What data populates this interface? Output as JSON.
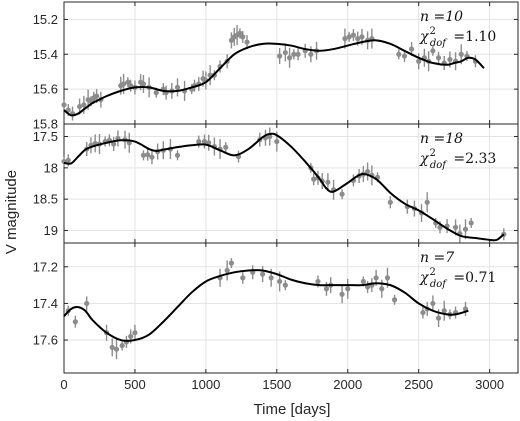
{
  "chart_data": {
    "type": "scatter",
    "xlabel": "Time [days]",
    "ylabel": "V magnitude",
    "xlim": [
      0,
      3200
    ],
    "x_ticks": [
      "0",
      "500",
      "1000",
      "1500",
      "2000",
      "2500",
      "3000"
    ],
    "grid": true,
    "panels": [
      {
        "ylim": [
          15.8,
          15.1
        ],
        "y_reversed": true,
        "y_ticks": [
          "15.2",
          "15.4",
          "15.6",
          "15.8"
        ],
        "y_tick_values": [
          15.2,
          15.4,
          15.6,
          15.8
        ],
        "annotation": {
          "n_label": "n =10",
          "chi_value": "=1.10"
        },
        "points": [
          [
            0,
            15.69
          ],
          [
            30,
            15.72
          ],
          [
            60,
            15.74
          ],
          [
            110,
            15.7
          ],
          [
            140,
            15.69
          ],
          [
            170,
            15.66
          ],
          [
            190,
            15.67
          ],
          [
            210,
            15.65
          ],
          [
            230,
            15.64
          ],
          [
            260,
            15.66
          ],
          [
            400,
            15.58
          ],
          [
            420,
            15.57
          ],
          [
            450,
            15.56
          ],
          [
            470,
            15.58
          ],
          [
            500,
            15.59
          ],
          [
            540,
            15.56
          ],
          [
            560,
            15.57
          ],
          [
            600,
            15.59
          ],
          [
            650,
            15.62
          ],
          [
            700,
            15.6
          ],
          [
            720,
            15.62
          ],
          [
            760,
            15.61
          ],
          [
            800,
            15.59
          ],
          [
            850,
            15.61
          ],
          [
            900,
            15.6
          ],
          [
            920,
            15.58
          ],
          [
            950,
            15.57
          ],
          [
            980,
            15.54
          ],
          [
            1000,
            15.55
          ],
          [
            1030,
            15.52
          ],
          [
            1060,
            15.52
          ],
          [
            1100,
            15.47
          ],
          [
            1150,
            15.44
          ],
          [
            1180,
            15.32
          ],
          [
            1200,
            15.3
          ],
          [
            1220,
            15.29
          ],
          [
            1240,
            15.28
          ],
          [
            1260,
            15.3
          ],
          [
            1290,
            15.33
          ],
          [
            1520,
            15.41
          ],
          [
            1560,
            15.39
          ],
          [
            1590,
            15.42
          ],
          [
            1620,
            15.4
          ],
          [
            1650,
            15.4
          ],
          [
            1700,
            15.38
          ],
          [
            1740,
            15.4
          ],
          [
            1780,
            15.38
          ],
          [
            1980,
            15.31
          ],
          [
            2010,
            15.3
          ],
          [
            2040,
            15.29
          ],
          [
            2070,
            15.31
          ],
          [
            2100,
            15.3
          ],
          [
            2140,
            15.32
          ],
          [
            2170,
            15.31
          ],
          [
            2360,
            15.4
          ],
          [
            2400,
            15.41
          ],
          [
            2450,
            15.37
          ],
          [
            2500,
            15.44
          ],
          [
            2540,
            15.42
          ],
          [
            2570,
            15.44
          ],
          [
            2600,
            15.38
          ],
          [
            2640,
            15.42
          ],
          [
            2680,
            15.45
          ],
          [
            2720,
            15.43
          ],
          [
            2760,
            15.44
          ],
          [
            2800,
            15.4
          ],
          [
            2840,
            15.41
          ],
          [
            2900,
            15.44
          ]
        ],
        "fit": [
          [
            0,
            15.72
          ],
          [
            50,
            15.75
          ],
          [
            100,
            15.74
          ],
          [
            150,
            15.71
          ],
          [
            200,
            15.68
          ],
          [
            250,
            15.66
          ],
          [
            300,
            15.64
          ],
          [
            400,
            15.61
          ],
          [
            500,
            15.59
          ],
          [
            600,
            15.59
          ],
          [
            700,
            15.61
          ],
          [
            800,
            15.61
          ],
          [
            900,
            15.59
          ],
          [
            1000,
            15.56
          ],
          [
            1100,
            15.48
          ],
          [
            1200,
            15.4
          ],
          [
            1300,
            15.36
          ],
          [
            1400,
            15.34
          ],
          [
            1500,
            15.34
          ],
          [
            1600,
            15.35
          ],
          [
            1700,
            15.37
          ],
          [
            1800,
            15.38
          ],
          [
            1900,
            15.37
          ],
          [
            2000,
            15.35
          ],
          [
            2100,
            15.33
          ],
          [
            2200,
            15.32
          ],
          [
            2300,
            15.34
          ],
          [
            2400,
            15.38
          ],
          [
            2500,
            15.42
          ],
          [
            2600,
            15.45
          ],
          [
            2700,
            15.46
          ],
          [
            2750,
            15.45
          ],
          [
            2800,
            15.44
          ],
          [
            2850,
            15.42
          ],
          [
            2900,
            15.43
          ],
          [
            2960,
            15.48
          ]
        ]
      },
      {
        "ylim": [
          19.2,
          17.3
        ],
        "y_reversed": true,
        "y_ticks": [
          "17.5",
          "18",
          "18.5",
          "19"
        ],
        "y_tick_values": [
          17.5,
          18.0,
          18.5,
          19.0
        ],
        "annotation": {
          "n_label": "n =18",
          "chi_value": "=2.33"
        },
        "points": [
          [
            0,
            17.9
          ],
          [
            30,
            17.88
          ],
          [
            160,
            17.7
          ],
          [
            190,
            17.64
          ],
          [
            220,
            17.61
          ],
          [
            250,
            17.62
          ],
          [
            290,
            17.58
          ],
          [
            320,
            17.56
          ],
          [
            350,
            17.62
          ],
          [
            380,
            17.53
          ],
          [
            430,
            17.55
          ],
          [
            460,
            17.6
          ],
          [
            560,
            17.8
          ],
          [
            590,
            17.79
          ],
          [
            620,
            17.83
          ],
          [
            660,
            17.74
          ],
          [
            700,
            17.72
          ],
          [
            750,
            17.7
          ],
          [
            800,
            17.8
          ],
          [
            950,
            17.58
          ],
          [
            990,
            17.58
          ],
          [
            1020,
            17.6
          ],
          [
            1060,
            17.66
          ],
          [
            1100,
            17.7
          ],
          [
            1140,
            17.67
          ],
          [
            1230,
            17.82
          ],
          [
            1380,
            17.55
          ],
          [
            1420,
            17.52
          ],
          [
            1450,
            17.5
          ],
          [
            1500,
            17.58
          ],
          [
            1740,
            18.0
          ],
          [
            1760,
            18.18
          ],
          [
            1790,
            18.16
          ],
          [
            1820,
            18.21
          ],
          [
            1860,
            18.23
          ],
          [
            1900,
            18.35
          ],
          [
            1960,
            18.42
          ],
          [
            2040,
            18.2
          ],
          [
            2080,
            18.13
          ],
          [
            2110,
            18.1
          ],
          [
            2140,
            18.06
          ],
          [
            2170,
            18.12
          ],
          [
            2210,
            18.15
          ],
          [
            2300,
            18.55
          ],
          [
            2420,
            18.62
          ],
          [
            2470,
            18.65
          ],
          [
            2520,
            18.72
          ],
          [
            2560,
            18.55
          ],
          [
            2620,
            18.88
          ],
          [
            2650,
            18.95
          ],
          [
            2700,
            18.93
          ],
          [
            2760,
            18.95
          ],
          [
            2790,
            19.05
          ],
          [
            2830,
            18.98
          ],
          [
            2870,
            18.88
          ],
          [
            3100,
            19.06
          ]
        ],
        "fit": [
          [
            0,
            17.92
          ],
          [
            50,
            17.93
          ],
          [
            100,
            17.82
          ],
          [
            150,
            17.71
          ],
          [
            200,
            17.66
          ],
          [
            300,
            17.6
          ],
          [
            400,
            17.56
          ],
          [
            500,
            17.58
          ],
          [
            600,
            17.7
          ],
          [
            650,
            17.73
          ],
          [
            700,
            17.71
          ],
          [
            800,
            17.67
          ],
          [
            900,
            17.64
          ],
          [
            1000,
            17.63
          ],
          [
            1100,
            17.72
          ],
          [
            1200,
            17.8
          ],
          [
            1300,
            17.7
          ],
          [
            1400,
            17.51
          ],
          [
            1450,
            17.46
          ],
          [
            1500,
            17.48
          ],
          [
            1600,
            17.66
          ],
          [
            1700,
            17.9
          ],
          [
            1800,
            18.17
          ],
          [
            1850,
            18.33
          ],
          [
            1900,
            18.38
          ],
          [
            2000,
            18.24
          ],
          [
            2100,
            18.1
          ],
          [
            2200,
            18.18
          ],
          [
            2300,
            18.4
          ],
          [
            2400,
            18.57
          ],
          [
            2500,
            18.68
          ],
          [
            2600,
            18.82
          ],
          [
            2700,
            18.97
          ],
          [
            2800,
            19.09
          ],
          [
            2900,
            19.12
          ],
          [
            3000,
            19.15
          ],
          [
            3050,
            19.15
          ],
          [
            3100,
            19.06
          ]
        ]
      },
      {
        "ylim": [
          17.78,
          17.07
        ],
        "y_reversed": true,
        "y_ticks": [
          "17.2",
          "17.4",
          "17.6"
        ],
        "y_tick_values": [
          17.2,
          17.4,
          17.6
        ],
        "annotation": {
          "n_label": "n =7",
          "chi_value": "=0.71"
        },
        "points": [
          [
            30,
            17.44
          ],
          [
            80,
            17.5
          ],
          [
            160,
            17.4
          ],
          [
            300,
            17.56
          ],
          [
            340,
            17.64
          ],
          [
            370,
            17.65
          ],
          [
            410,
            17.63
          ],
          [
            440,
            17.61
          ],
          [
            470,
            17.58
          ],
          [
            500,
            17.56
          ],
          [
            1100,
            17.26
          ],
          [
            1150,
            17.22
          ],
          [
            1180,
            17.18
          ],
          [
            1260,
            17.26
          ],
          [
            1330,
            17.23
          ],
          [
            1400,
            17.24
          ],
          [
            1460,
            17.26
          ],
          [
            1520,
            17.28
          ],
          [
            1560,
            17.3
          ],
          [
            1790,
            17.28
          ],
          [
            1850,
            17.32
          ],
          [
            1880,
            17.3
          ],
          [
            1960,
            17.35
          ],
          [
            2000,
            17.32
          ],
          [
            2110,
            17.28
          ],
          [
            2140,
            17.31
          ],
          [
            2170,
            17.3
          ],
          [
            2200,
            17.26
          ],
          [
            2240,
            17.32
          ],
          [
            2280,
            17.26
          ],
          [
            2330,
            17.38
          ],
          [
            2530,
            17.45
          ],
          [
            2560,
            17.43
          ],
          [
            2600,
            17.4
          ],
          [
            2640,
            17.48
          ],
          [
            2680,
            17.44
          ],
          [
            2720,
            17.46
          ],
          [
            2760,
            17.45
          ],
          [
            2830,
            17.43
          ]
        ],
        "fit": [
          [
            0,
            17.47
          ],
          [
            50,
            17.43
          ],
          [
            100,
            17.42
          ],
          [
            150,
            17.44
          ],
          [
            200,
            17.49
          ],
          [
            300,
            17.56
          ],
          [
            400,
            17.6
          ],
          [
            500,
            17.6
          ],
          [
            600,
            17.57
          ],
          [
            700,
            17.5
          ],
          [
            800,
            17.42
          ],
          [
            900,
            17.34
          ],
          [
            1000,
            17.28
          ],
          [
            1100,
            17.25
          ],
          [
            1200,
            17.23
          ],
          [
            1300,
            17.22
          ],
          [
            1400,
            17.22
          ],
          [
            1500,
            17.24
          ],
          [
            1600,
            17.27
          ],
          [
            1700,
            17.29
          ],
          [
            1800,
            17.3
          ],
          [
            1900,
            17.3
          ],
          [
            2000,
            17.3
          ],
          [
            2100,
            17.3
          ],
          [
            2200,
            17.29
          ],
          [
            2300,
            17.3
          ],
          [
            2400,
            17.34
          ],
          [
            2500,
            17.4
          ],
          [
            2600,
            17.44
          ],
          [
            2700,
            17.46
          ],
          [
            2760,
            17.46
          ],
          [
            2850,
            17.44
          ]
        ]
      }
    ]
  }
}
